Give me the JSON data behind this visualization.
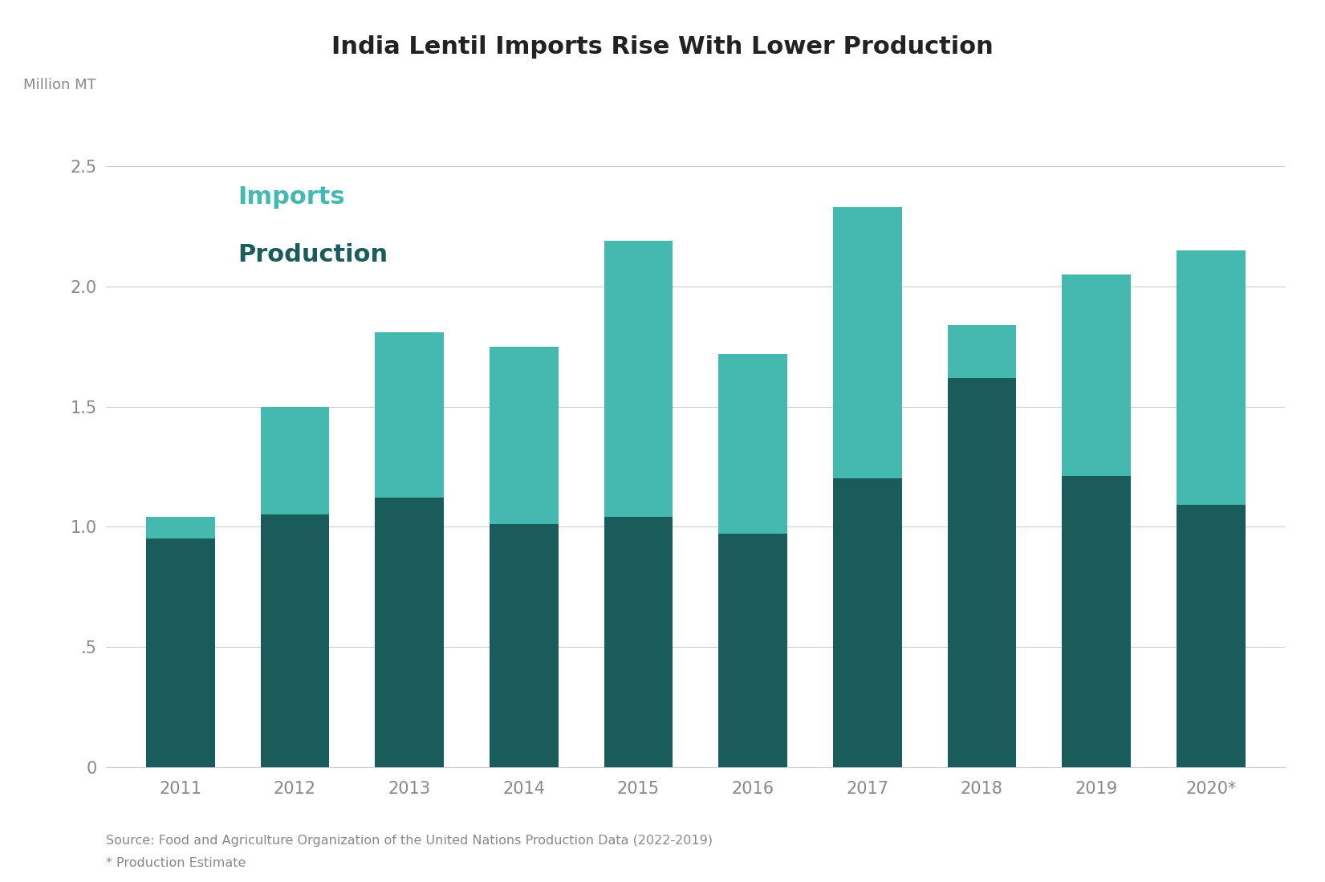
{
  "title": "India Lentil Imports Rise With Lower Production",
  "ylabel": "Million MT",
  "categories": [
    "2011",
    "2012",
    "2013",
    "2014",
    "2015",
    "2016",
    "2017",
    "2018",
    "2019",
    "2020*"
  ],
  "production": [
    0.95,
    1.05,
    1.12,
    1.01,
    1.04,
    0.97,
    1.2,
    1.62,
    1.21,
    1.09
  ],
  "imports": [
    0.09,
    0.45,
    0.69,
    0.74,
    1.15,
    0.75,
    1.13,
    0.22,
    0.84,
    1.06
  ],
  "production_color": "#1a5c5c",
  "imports_color": "#45b8b0",
  "background_color": "#ffffff",
  "ylim": [
    0,
    2.75
  ],
  "yticks": [
    0,
    0.5,
    1.0,
    1.5,
    2.0,
    2.5
  ],
  "ytick_labels": [
    "0",
    ".5",
    "1.0",
    "1.5",
    "2.0",
    "2.5"
  ],
  "legend_imports_label": "Imports",
  "legend_production_label": "Production",
  "source_line1": "Source: Food and Agriculture Organization of the United Nations Production Data (2022-2019)",
  "source_line2": "* Production Estimate",
  "title_fontsize": 22,
  "label_fontsize": 13,
  "tick_fontsize": 15,
  "legend_imports_fontsize": 22,
  "legend_production_fontsize": 22,
  "bar_width": 0.6
}
